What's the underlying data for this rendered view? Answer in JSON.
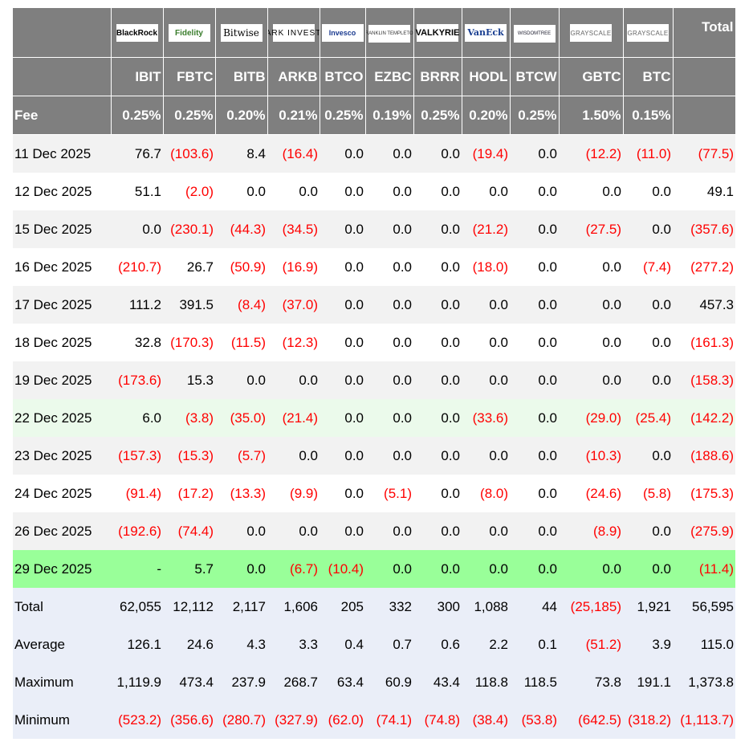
{
  "issuers": [
    {
      "name": "BlackRock",
      "icon": "blackrock-logo"
    },
    {
      "name": "Fidelity",
      "icon": "fidelity-logo"
    },
    {
      "name": "Bitwise",
      "icon": "bitwise-logo"
    },
    {
      "name": "ARK INVEST",
      "icon": "ark-invest-logo"
    },
    {
      "name": "Invesco",
      "icon": "invesco-logo"
    },
    {
      "name": "FRANKLIN TEMPLETON",
      "icon": "franklin-templeton-logo"
    },
    {
      "name": "VALKYRIE",
      "icon": "valkyrie-logo"
    },
    {
      "name": "VanEck",
      "icon": "vaneck-logo"
    },
    {
      "name": "WISDOMTREE",
      "icon": "wisdomtree-logo"
    },
    {
      "name": "GRAYSCALE",
      "icon": "grayscale-logo"
    },
    {
      "name": "GRAYSCALE",
      "icon": "grayscale-logo"
    }
  ],
  "total_header": "Total",
  "tickers": [
    "IBIT",
    "FBTC",
    "BITB",
    "ARKB",
    "BTCO",
    "EZBC",
    "BRRR",
    "HODL",
    "BTCW",
    "GBTC",
    "BTC"
  ],
  "fee_label": "Fee",
  "fees": [
    "0.25%",
    "0.25%",
    "0.20%",
    "0.21%",
    "0.25%",
    "0.19%",
    "0.25%",
    "0.20%",
    "0.25%",
    "1.50%",
    "0.15%"
  ],
  "rows": [
    {
      "date": "11 Dec 2025",
      "values": [
        "76.7",
        "(103.6)",
        "8.4",
        "(16.4)",
        "0.0",
        "0.0",
        "0.0",
        "(19.4)",
        "0.0",
        "(12.2)",
        "(11.0)"
      ],
      "total": "(77.5)",
      "style": "odd"
    },
    {
      "date": "12 Dec 2025",
      "values": [
        "51.1",
        "(2.0)",
        "0.0",
        "0.0",
        "0.0",
        "0.0",
        "0.0",
        "0.0",
        "0.0",
        "0.0",
        "0.0"
      ],
      "total": "49.1",
      "style": "even"
    },
    {
      "date": "15 Dec 2025",
      "values": [
        "0.0",
        "(230.1)",
        "(44.3)",
        "(34.5)",
        "0.0",
        "0.0",
        "0.0",
        "(21.2)",
        "0.0",
        "(27.5)",
        "0.0"
      ],
      "total": "(357.6)",
      "style": "odd"
    },
    {
      "date": "16 Dec 2025",
      "values": [
        "(210.7)",
        "26.7",
        "(50.9)",
        "(16.9)",
        "0.0",
        "0.0",
        "0.0",
        "(18.0)",
        "0.0",
        "0.0",
        "(7.4)"
      ],
      "total": "(277.2)",
      "style": "even"
    },
    {
      "date": "17 Dec 2025",
      "values": [
        "111.2",
        "391.5",
        "(8.4)",
        "(37.0)",
        "0.0",
        "0.0",
        "0.0",
        "0.0",
        "0.0",
        "0.0",
        "0.0"
      ],
      "total": "457.3",
      "style": "odd"
    },
    {
      "date": "18 Dec 2025",
      "values": [
        "32.8",
        "(170.3)",
        "(11.5)",
        "(12.3)",
        "0.0",
        "0.0",
        "0.0",
        "0.0",
        "0.0",
        "0.0",
        "0.0"
      ],
      "total": "(161.3)",
      "style": "even"
    },
    {
      "date": "19 Dec 2025",
      "values": [
        "(173.6)",
        "15.3",
        "0.0",
        "0.0",
        "0.0",
        "0.0",
        "0.0",
        "0.0",
        "0.0",
        "0.0",
        "0.0"
      ],
      "total": "(158.3)",
      "style": "odd"
    },
    {
      "date": "22 Dec 2025",
      "values": [
        "6.0",
        "(3.8)",
        "(35.0)",
        "(21.4)",
        "0.0",
        "0.0",
        "0.0",
        "(33.6)",
        "0.0",
        "(29.0)",
        "(25.4)"
      ],
      "total": "(142.2)",
      "style": "light"
    },
    {
      "date": "23 Dec 2025",
      "values": [
        "(157.3)",
        "(15.3)",
        "(5.7)",
        "0.0",
        "0.0",
        "0.0",
        "0.0",
        "0.0",
        "0.0",
        "(10.3)",
        "0.0"
      ],
      "total": "(188.6)",
      "style": "odd"
    },
    {
      "date": "24 Dec 2025",
      "values": [
        "(91.4)",
        "(17.2)",
        "(13.3)",
        "(9.9)",
        "0.0",
        "(5.1)",
        "0.0",
        "(8.0)",
        "0.0",
        "(24.6)",
        "(5.8)"
      ],
      "total": "(175.3)",
      "style": "even"
    },
    {
      "date": "26 Dec 2025",
      "values": [
        "(192.6)",
        "(74.4)",
        "0.0",
        "0.0",
        "0.0",
        "0.0",
        "0.0",
        "0.0",
        "0.0",
        "(8.9)",
        "0.0"
      ],
      "total": "(275.9)",
      "style": "odd"
    },
    {
      "date": "29 Dec 2025",
      "values": [
        "-",
        "5.7",
        "0.0",
        "(6.7)",
        "(10.4)",
        "0.0",
        "0.0",
        "0.0",
        "0.0",
        "0.0",
        "0.0"
      ],
      "total": "(11.4)",
      "style": "bright"
    }
  ],
  "summary": [
    {
      "label": "Total",
      "values": [
        "62,055",
        "12,112",
        "2,117",
        "1,606",
        "205",
        "332",
        "300",
        "1,088",
        "44",
        "(25,185)",
        "1,921"
      ],
      "total": "56,595"
    },
    {
      "label": "Average",
      "values": [
        "126.1",
        "24.6",
        "4.3",
        "3.3",
        "0.4",
        "0.7",
        "0.6",
        "2.2",
        "0.1",
        "(51.2)",
        "3.9"
      ],
      "total": "115.0"
    },
    {
      "label": "Maximum",
      "values": [
        "1,119.9",
        "473.4",
        "237.9",
        "268.7",
        "63.4",
        "60.9",
        "43.4",
        "118.8",
        "118.5",
        "73.8",
        "191.1"
      ],
      "total": "1,373.8"
    },
    {
      "label": "Minimum",
      "values": [
        "(523.2)",
        "(356.6)",
        "(280.7)",
        "(327.9)",
        "(62.0)",
        "(74.1)",
        "(74.8)",
        "(38.4)",
        "(53.8)",
        "(642.5)",
        "(318.2)"
      ],
      "total": "(1,113.7)"
    }
  ],
  "colors": {
    "header_bg": "#7f7f7f",
    "negative": "#ff0000",
    "row_odd": "#f2f2f2",
    "row_light_green": "#ebfaeb",
    "row_bright_green": "#99ff99",
    "summary_bg": "#eaeef8"
  }
}
